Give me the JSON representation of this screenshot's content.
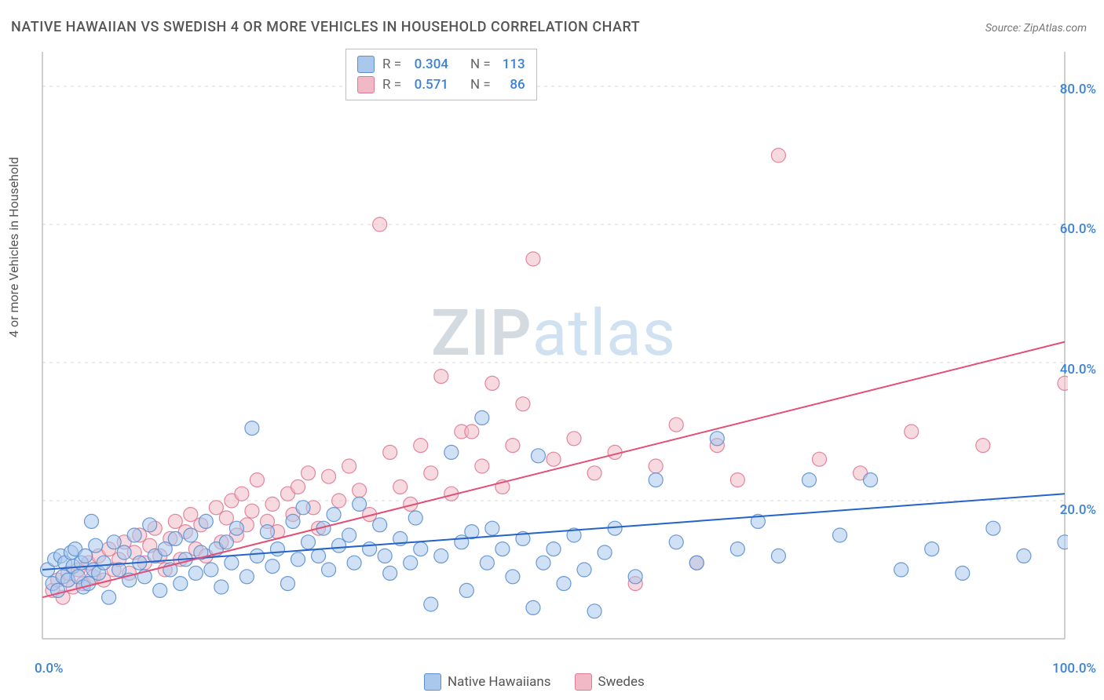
{
  "title": "NATIVE HAWAIIAN VS SWEDISH 4 OR MORE VEHICLES IN HOUSEHOLD CORRELATION CHART",
  "source": "Source: ZipAtlas.com",
  "ylabel": "4 or more Vehicles in Household",
  "watermark": {
    "part1": "ZIP",
    "part2": "atlas"
  },
  "chart": {
    "type": "scatter",
    "background_color": "#ffffff",
    "grid_color": "#d8d8d8",
    "axis_color": "#bfbfbf",
    "tick_color": "#3b82d6",
    "xlim": [
      0,
      100
    ],
    "ylim": [
      0,
      85
    ],
    "yticks": [
      20,
      40,
      60,
      80
    ],
    "ytick_labels": [
      "20.0%",
      "40.0%",
      "60.0%",
      "80.0%"
    ],
    "xticks": [
      0,
      100
    ],
    "xtick_labels": [
      "0.0%",
      "100.0%"
    ],
    "marker_radius": 9,
    "marker_opacity": 0.55,
    "line_width": 2,
    "series": [
      {
        "name": "Native Hawaiians",
        "color_fill": "#a9c8ec",
        "color_stroke": "#5b8fd0",
        "line_color": "#2563c9",
        "r_label": "R =",
        "r_value": "0.304",
        "n_label": "N =",
        "n_value": "113",
        "trend": {
          "x1": 0,
          "y1": 10,
          "x2": 100,
          "y2": 21
        },
        "points": [
          [
            0.5,
            10
          ],
          [
            1,
            8
          ],
          [
            1.2,
            11.5
          ],
          [
            1.5,
            7
          ],
          [
            1.8,
            12
          ],
          [
            2,
            9
          ],
          [
            2.2,
            11
          ],
          [
            2.5,
            8.5
          ],
          [
            2.8,
            12.5
          ],
          [
            3,
            10.5
          ],
          [
            3.2,
            13
          ],
          [
            3.5,
            9
          ],
          [
            3.8,
            11
          ],
          [
            4,
            7.5
          ],
          [
            4.2,
            12
          ],
          [
            4.5,
            8
          ],
          [
            4.8,
            17
          ],
          [
            5,
            10
          ],
          [
            5.2,
            13.5
          ],
          [
            5.5,
            9.5
          ],
          [
            6,
            11
          ],
          [
            6.5,
            6
          ],
          [
            7,
            14
          ],
          [
            7.5,
            10
          ],
          [
            8,
            12.5
          ],
          [
            8.5,
            8.5
          ],
          [
            9,
            15
          ],
          [
            9.5,
            11
          ],
          [
            10,
            9
          ],
          [
            10.5,
            16.5
          ],
          [
            11,
            12
          ],
          [
            11.5,
            7
          ],
          [
            12,
            13
          ],
          [
            12.5,
            10
          ],
          [
            13,
            14.5
          ],
          [
            13.5,
            8
          ],
          [
            14,
            11.5
          ],
          [
            14.5,
            15
          ],
          [
            15,
            9.5
          ],
          [
            15.5,
            12.5
          ],
          [
            16,
            17
          ],
          [
            16.5,
            10
          ],
          [
            17,
            13
          ],
          [
            17.5,
            7.5
          ],
          [
            18,
            14
          ],
          [
            18.5,
            11
          ],
          [
            19,
            16
          ],
          [
            20,
            9
          ],
          [
            20.5,
            30.5
          ],
          [
            21,
            12
          ],
          [
            22,
            15.5
          ],
          [
            22.5,
            10.5
          ],
          [
            23,
            13
          ],
          [
            24,
            8
          ],
          [
            24.5,
            17
          ],
          [
            25,
            11.5
          ],
          [
            25.5,
            19
          ],
          [
            26,
            14
          ],
          [
            27,
            12
          ],
          [
            27.5,
            16
          ],
          [
            28,
            10
          ],
          [
            28.5,
            18
          ],
          [
            29,
            13.5
          ],
          [
            30,
            15
          ],
          [
            30.5,
            11
          ],
          [
            31,
            19.5
          ],
          [
            32,
            13
          ],
          [
            33,
            16.5
          ],
          [
            33.5,
            12
          ],
          [
            34,
            9.5
          ],
          [
            35,
            14.5
          ],
          [
            36,
            11
          ],
          [
            36.5,
            17.5
          ],
          [
            37,
            13
          ],
          [
            38,
            5
          ],
          [
            39,
            12
          ],
          [
            40,
            27
          ],
          [
            41,
            14
          ],
          [
            41.5,
            7
          ],
          [
            42,
            15.5
          ],
          [
            43,
            32
          ],
          [
            43.5,
            11
          ],
          [
            44,
            16
          ],
          [
            45,
            13
          ],
          [
            46,
            9
          ],
          [
            47,
            14.5
          ],
          [
            48,
            4.5
          ],
          [
            48.5,
            26.5
          ],
          [
            49,
            11
          ],
          [
            50,
            13
          ],
          [
            51,
            8
          ],
          [
            52,
            15
          ],
          [
            53,
            10
          ],
          [
            54,
            4
          ],
          [
            55,
            12.5
          ],
          [
            56,
            16
          ],
          [
            58,
            9
          ],
          [
            60,
            23
          ],
          [
            62,
            14
          ],
          [
            64,
            11
          ],
          [
            66,
            29
          ],
          [
            68,
            13
          ],
          [
            70,
            17
          ],
          [
            72,
            12
          ],
          [
            75,
            23
          ],
          [
            78,
            15
          ],
          [
            81,
            23
          ],
          [
            84,
            10
          ],
          [
            87,
            13
          ],
          [
            90,
            9.5
          ],
          [
            93,
            16
          ],
          [
            96,
            12
          ],
          [
            100,
            14
          ]
        ]
      },
      {
        "name": "Swedes",
        "color_fill": "#f1b9c6",
        "color_stroke": "#e07a94",
        "line_color": "#e04f76",
        "r_label": "R =",
        "r_value": "0.571",
        "n_label": "N =",
        "n_value": "86",
        "trend": {
          "x1": 0,
          "y1": 6,
          "x2": 100,
          "y2": 43
        },
        "points": [
          [
            1,
            7
          ],
          [
            1.5,
            8.5
          ],
          [
            2,
            6
          ],
          [
            2.5,
            9.5
          ],
          [
            3,
            7.5
          ],
          [
            3.5,
            10
          ],
          [
            4,
            8
          ],
          [
            4.5,
            11
          ],
          [
            5,
            9
          ],
          [
            5.5,
            12
          ],
          [
            6,
            8.5
          ],
          [
            6.5,
            13
          ],
          [
            7,
            10
          ],
          [
            7.5,
            11.5
          ],
          [
            8,
            14
          ],
          [
            8.5,
            9.5
          ],
          [
            9,
            12.5
          ],
          [
            9.5,
            15
          ],
          [
            10,
            11
          ],
          [
            10.5,
            13.5
          ],
          [
            11,
            16
          ],
          [
            11.5,
            12
          ],
          [
            12,
            10
          ],
          [
            12.5,
            14.5
          ],
          [
            13,
            17
          ],
          [
            13.5,
            11.5
          ],
          [
            14,
            15.5
          ],
          [
            14.5,
            18
          ],
          [
            15,
            13
          ],
          [
            15.5,
            16.5
          ],
          [
            16,
            12
          ],
          [
            17,
            19
          ],
          [
            17.5,
            14
          ],
          [
            18,
            17.5
          ],
          [
            18.5,
            20
          ],
          [
            19,
            15
          ],
          [
            19.5,
            21
          ],
          [
            20,
            16.5
          ],
          [
            20.5,
            18.5
          ],
          [
            21,
            23
          ],
          [
            22,
            17
          ],
          [
            22.5,
            19.5
          ],
          [
            23,
            15.5
          ],
          [
            24,
            21
          ],
          [
            24.5,
            18
          ],
          [
            25,
            22
          ],
          [
            26,
            24
          ],
          [
            26.5,
            19
          ],
          [
            27,
            16
          ],
          [
            28,
            23.5
          ],
          [
            29,
            20
          ],
          [
            30,
            25
          ],
          [
            31,
            21.5
          ],
          [
            32,
            18
          ],
          [
            33,
            60
          ],
          [
            34,
            27
          ],
          [
            35,
            22
          ],
          [
            36,
            19.5
          ],
          [
            37,
            28
          ],
          [
            38,
            24
          ],
          [
            39,
            38
          ],
          [
            40,
            21
          ],
          [
            41,
            30
          ],
          [
            42,
            30
          ],
          [
            43,
            25
          ],
          [
            44,
            37
          ],
          [
            45,
            22
          ],
          [
            46,
            28
          ],
          [
            47,
            34
          ],
          [
            48,
            55
          ],
          [
            50,
            26
          ],
          [
            52,
            29
          ],
          [
            54,
            24
          ],
          [
            56,
            27
          ],
          [
            58,
            8
          ],
          [
            60,
            25
          ],
          [
            62,
            31
          ],
          [
            64,
            11
          ],
          [
            66,
            28
          ],
          [
            68,
            23
          ],
          [
            72,
            70
          ],
          [
            76,
            26
          ],
          [
            80,
            24
          ],
          [
            85,
            30
          ],
          [
            92,
            28
          ],
          [
            100,
            37
          ]
        ]
      }
    ]
  },
  "legend_label_1": "Native Hawaiians",
  "legend_label_2": "Swedes"
}
